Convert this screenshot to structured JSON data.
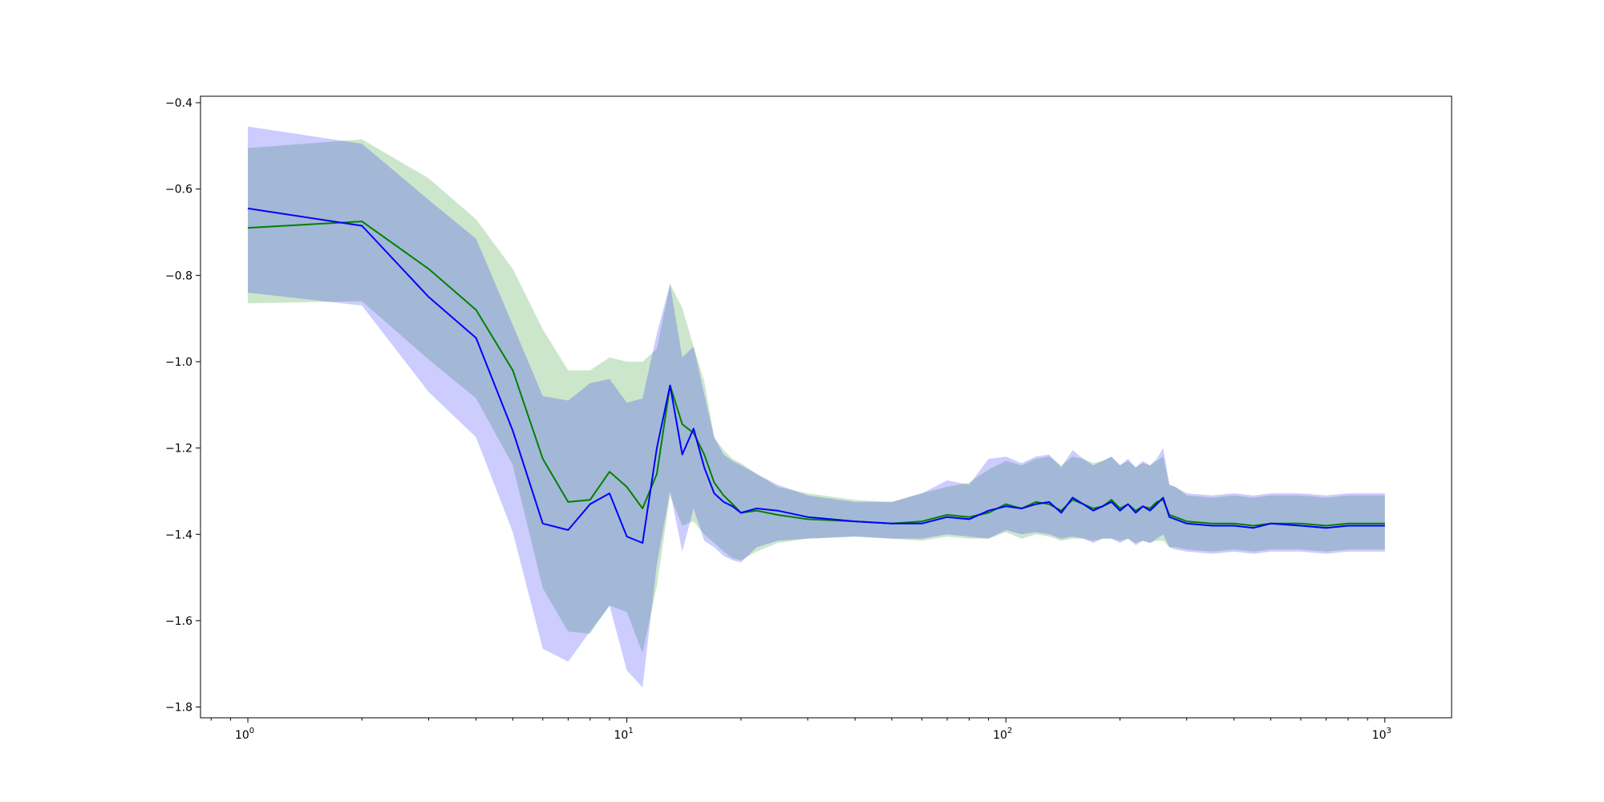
{
  "chart_data": {
    "type": "line",
    "title": "",
    "xlabel": "",
    "ylabel": "",
    "xscale": "log",
    "xlim": [
      0.75,
      1500
    ],
    "ylim": [
      -1.825,
      -0.385
    ],
    "grid": false,
    "legend": "none",
    "x_ticks": [
      {
        "value": 1,
        "base": "10",
        "exp": "0"
      },
      {
        "value": 10,
        "base": "10",
        "exp": "1"
      },
      {
        "value": 100,
        "base": "10",
        "exp": "2"
      },
      {
        "value": 1000,
        "base": "10",
        "exp": "3"
      }
    ],
    "y_ticks": [
      {
        "value": -0.4,
        "label": "−0.4"
      },
      {
        "value": -0.6,
        "label": "−0.6"
      },
      {
        "value": -0.8,
        "label": "−0.8"
      },
      {
        "value": -1.0,
        "label": "−1.0"
      },
      {
        "value": -1.2,
        "label": "−1.2"
      },
      {
        "value": -1.4,
        "label": "−1.4"
      },
      {
        "value": -1.6,
        "label": "−1.6"
      },
      {
        "value": -1.8,
        "label": "−1.8"
      }
    ],
    "series": [
      {
        "color": "#008000",
        "band_color": "#008000",
        "band_opacity": 0.2,
        "x": [
          1,
          2,
          3,
          4,
          5,
          6,
          7,
          8,
          9,
          10,
          11,
          12,
          13,
          14,
          15,
          16,
          17,
          18,
          19,
          20,
          22,
          25,
          30,
          40,
          50,
          60,
          70,
          80,
          90,
          100,
          110,
          120,
          130,
          140,
          150,
          160,
          170,
          180,
          190,
          200,
          210,
          220,
          230,
          240,
          250,
          260,
          270,
          280,
          300,
          350,
          400,
          450,
          500,
          600,
          700,
          800,
          900,
          1000
        ],
        "y": [
          -0.69,
          -0.675,
          -0.785,
          -0.88,
          -1.02,
          -1.225,
          -1.325,
          -1.32,
          -1.255,
          -1.29,
          -1.34,
          -1.26,
          -1.055,
          -1.145,
          -1.165,
          -1.215,
          -1.28,
          -1.31,
          -1.33,
          -1.35,
          -1.345,
          -1.355,
          -1.365,
          -1.37,
          -1.375,
          -1.37,
          -1.355,
          -1.36,
          -1.35,
          -1.33,
          -1.34,
          -1.325,
          -1.33,
          -1.345,
          -1.32,
          -1.33,
          -1.34,
          -1.335,
          -1.32,
          -1.34,
          -1.33,
          -1.345,
          -1.335,
          -1.34,
          -1.325,
          -1.32,
          -1.355,
          -1.36,
          -1.37,
          -1.375,
          -1.375,
          -1.38,
          -1.375,
          -1.375,
          -1.38,
          -1.375,
          -1.375,
          -1.375
        ],
        "lower": [
          -0.865,
          -0.86,
          -0.995,
          -1.085,
          -1.24,
          -1.525,
          -1.625,
          -1.63,
          -1.565,
          -1.58,
          -1.675,
          -1.52,
          -1.31,
          -1.38,
          -1.37,
          -1.4,
          -1.42,
          -1.44,
          -1.455,
          -1.46,
          -1.44,
          -1.42,
          -1.41,
          -1.405,
          -1.41,
          -1.415,
          -1.405,
          -1.41,
          -1.41,
          -1.395,
          -1.41,
          -1.4,
          -1.405,
          -1.415,
          -1.41,
          -1.41,
          -1.415,
          -1.41,
          -1.41,
          -1.415,
          -1.41,
          -1.42,
          -1.415,
          -1.42,
          -1.415,
          -1.415,
          -1.43,
          -1.43,
          -1.435,
          -1.44,
          -1.435,
          -1.44,
          -1.435,
          -1.435,
          -1.44,
          -1.435,
          -1.435,
          -1.435
        ],
        "upper": [
          -0.505,
          -0.485,
          -0.575,
          -0.67,
          -0.785,
          -0.925,
          -1.02,
          -1.02,
          -0.99,
          -1.0,
          -1.0,
          -0.97,
          -0.82,
          -0.875,
          -0.965,
          -1.045,
          -1.175,
          -1.205,
          -1.225,
          -1.235,
          -1.26,
          -1.29,
          -1.305,
          -1.32,
          -1.325,
          -1.305,
          -1.29,
          -1.28,
          -1.25,
          -1.23,
          -1.24,
          -1.225,
          -1.22,
          -1.24,
          -1.22,
          -1.225,
          -1.235,
          -1.23,
          -1.22,
          -1.24,
          -1.23,
          -1.245,
          -1.235,
          -1.24,
          -1.23,
          -1.22,
          -1.285,
          -1.29,
          -1.31,
          -1.315,
          -1.31,
          -1.315,
          -1.31,
          -1.31,
          -1.315,
          -1.31,
          -1.31,
          -1.31
        ]
      },
      {
        "color": "#0000ff",
        "band_color": "#0000ff",
        "band_opacity": 0.2,
        "x": [
          1,
          2,
          3,
          4,
          5,
          6,
          7,
          8,
          9,
          10,
          11,
          12,
          13,
          14,
          15,
          16,
          17,
          18,
          19,
          20,
          22,
          25,
          30,
          40,
          50,
          60,
          70,
          80,
          90,
          100,
          110,
          120,
          130,
          140,
          150,
          160,
          170,
          180,
          190,
          200,
          210,
          220,
          230,
          240,
          250,
          260,
          270,
          280,
          300,
          350,
          400,
          450,
          500,
          600,
          700,
          800,
          900,
          1000
        ],
        "y": [
          -0.645,
          -0.685,
          -0.85,
          -0.945,
          -1.16,
          -1.375,
          -1.39,
          -1.33,
          -1.305,
          -1.405,
          -1.42,
          -1.2,
          -1.055,
          -1.215,
          -1.155,
          -1.245,
          -1.305,
          -1.325,
          -1.335,
          -1.35,
          -1.34,
          -1.345,
          -1.36,
          -1.37,
          -1.375,
          -1.375,
          -1.36,
          -1.365,
          -1.345,
          -1.335,
          -1.34,
          -1.33,
          -1.325,
          -1.35,
          -1.315,
          -1.33,
          -1.345,
          -1.335,
          -1.325,
          -1.345,
          -1.33,
          -1.35,
          -1.335,
          -1.345,
          -1.33,
          -1.315,
          -1.36,
          -1.365,
          -1.375,
          -1.38,
          -1.38,
          -1.385,
          -1.375,
          -1.38,
          -1.385,
          -1.38,
          -1.38,
          -1.38
        ],
        "lower": [
          -0.84,
          -0.87,
          -1.07,
          -1.175,
          -1.395,
          -1.665,
          -1.695,
          -1.625,
          -1.565,
          -1.715,
          -1.755,
          -1.47,
          -1.3,
          -1.44,
          -1.34,
          -1.415,
          -1.43,
          -1.45,
          -1.46,
          -1.465,
          -1.43,
          -1.415,
          -1.41,
          -1.405,
          -1.41,
          -1.41,
          -1.4,
          -1.405,
          -1.41,
          -1.39,
          -1.4,
          -1.395,
          -1.4,
          -1.41,
          -1.405,
          -1.41,
          -1.42,
          -1.41,
          -1.41,
          -1.42,
          -1.41,
          -1.425,
          -1.415,
          -1.42,
          -1.41,
          -1.4,
          -1.43,
          -1.435,
          -1.44,
          -1.445,
          -1.44,
          -1.445,
          -1.44,
          -1.44,
          -1.445,
          -1.44,
          -1.44,
          -1.44
        ],
        "upper": [
          -0.455,
          -0.495,
          -0.625,
          -0.715,
          -0.915,
          -1.08,
          -1.09,
          -1.05,
          -1.04,
          -1.095,
          -1.085,
          -0.935,
          -0.82,
          -0.99,
          -0.965,
          -1.075,
          -1.175,
          -1.215,
          -1.23,
          -1.24,
          -1.26,
          -1.285,
          -1.31,
          -1.325,
          -1.325,
          -1.305,
          -1.275,
          -1.285,
          -1.225,
          -1.22,
          -1.235,
          -1.22,
          -1.215,
          -1.245,
          -1.205,
          -1.225,
          -1.24,
          -1.23,
          -1.22,
          -1.24,
          -1.225,
          -1.245,
          -1.23,
          -1.24,
          -1.225,
          -1.2,
          -1.285,
          -1.29,
          -1.305,
          -1.31,
          -1.305,
          -1.31,
          -1.305,
          -1.305,
          -1.31,
          -1.305,
          -1.305,
          -1.305
        ]
      }
    ]
  }
}
